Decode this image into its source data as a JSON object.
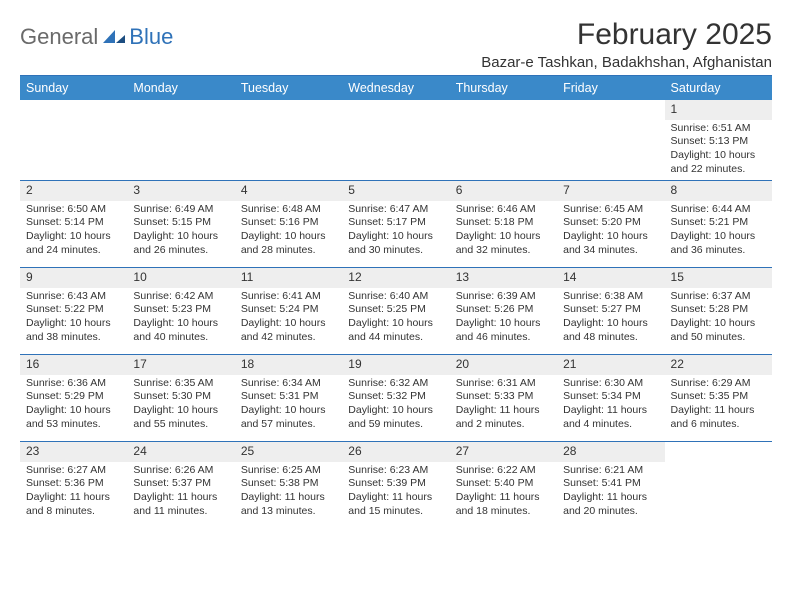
{
  "logo": {
    "general": "General",
    "blue": "Blue"
  },
  "title": "February 2025",
  "location": "Bazar-e Tashkan, Badakhshan, Afghanistan",
  "colors": {
    "header_bg": "#3a89c9",
    "rule": "#2f72b8",
    "daynum_bg": "#eeeeee",
    "text": "#333333",
    "logo_gray": "#6a6a6a",
    "logo_blue": "#2f72b8"
  },
  "weekdays": [
    "Sunday",
    "Monday",
    "Tuesday",
    "Wednesday",
    "Thursday",
    "Friday",
    "Saturday"
  ],
  "weeks": [
    [
      null,
      null,
      null,
      null,
      null,
      null,
      {
        "n": "1",
        "sr": "Sunrise: 6:51 AM",
        "ss": "Sunset: 5:13 PM",
        "dl": "Daylight: 10 hours and 22 minutes."
      }
    ],
    [
      {
        "n": "2",
        "sr": "Sunrise: 6:50 AM",
        "ss": "Sunset: 5:14 PM",
        "dl": "Daylight: 10 hours and 24 minutes."
      },
      {
        "n": "3",
        "sr": "Sunrise: 6:49 AM",
        "ss": "Sunset: 5:15 PM",
        "dl": "Daylight: 10 hours and 26 minutes."
      },
      {
        "n": "4",
        "sr": "Sunrise: 6:48 AM",
        "ss": "Sunset: 5:16 PM",
        "dl": "Daylight: 10 hours and 28 minutes."
      },
      {
        "n": "5",
        "sr": "Sunrise: 6:47 AM",
        "ss": "Sunset: 5:17 PM",
        "dl": "Daylight: 10 hours and 30 minutes."
      },
      {
        "n": "6",
        "sr": "Sunrise: 6:46 AM",
        "ss": "Sunset: 5:18 PM",
        "dl": "Daylight: 10 hours and 32 minutes."
      },
      {
        "n": "7",
        "sr": "Sunrise: 6:45 AM",
        "ss": "Sunset: 5:20 PM",
        "dl": "Daylight: 10 hours and 34 minutes."
      },
      {
        "n": "8",
        "sr": "Sunrise: 6:44 AM",
        "ss": "Sunset: 5:21 PM",
        "dl": "Daylight: 10 hours and 36 minutes."
      }
    ],
    [
      {
        "n": "9",
        "sr": "Sunrise: 6:43 AM",
        "ss": "Sunset: 5:22 PM",
        "dl": "Daylight: 10 hours and 38 minutes."
      },
      {
        "n": "10",
        "sr": "Sunrise: 6:42 AM",
        "ss": "Sunset: 5:23 PM",
        "dl": "Daylight: 10 hours and 40 minutes."
      },
      {
        "n": "11",
        "sr": "Sunrise: 6:41 AM",
        "ss": "Sunset: 5:24 PM",
        "dl": "Daylight: 10 hours and 42 minutes."
      },
      {
        "n": "12",
        "sr": "Sunrise: 6:40 AM",
        "ss": "Sunset: 5:25 PM",
        "dl": "Daylight: 10 hours and 44 minutes."
      },
      {
        "n": "13",
        "sr": "Sunrise: 6:39 AM",
        "ss": "Sunset: 5:26 PM",
        "dl": "Daylight: 10 hours and 46 minutes."
      },
      {
        "n": "14",
        "sr": "Sunrise: 6:38 AM",
        "ss": "Sunset: 5:27 PM",
        "dl": "Daylight: 10 hours and 48 minutes."
      },
      {
        "n": "15",
        "sr": "Sunrise: 6:37 AM",
        "ss": "Sunset: 5:28 PM",
        "dl": "Daylight: 10 hours and 50 minutes."
      }
    ],
    [
      {
        "n": "16",
        "sr": "Sunrise: 6:36 AM",
        "ss": "Sunset: 5:29 PM",
        "dl": "Daylight: 10 hours and 53 minutes."
      },
      {
        "n": "17",
        "sr": "Sunrise: 6:35 AM",
        "ss": "Sunset: 5:30 PM",
        "dl": "Daylight: 10 hours and 55 minutes."
      },
      {
        "n": "18",
        "sr": "Sunrise: 6:34 AM",
        "ss": "Sunset: 5:31 PM",
        "dl": "Daylight: 10 hours and 57 minutes."
      },
      {
        "n": "19",
        "sr": "Sunrise: 6:32 AM",
        "ss": "Sunset: 5:32 PM",
        "dl": "Daylight: 10 hours and 59 minutes."
      },
      {
        "n": "20",
        "sr": "Sunrise: 6:31 AM",
        "ss": "Sunset: 5:33 PM",
        "dl": "Daylight: 11 hours and 2 minutes."
      },
      {
        "n": "21",
        "sr": "Sunrise: 6:30 AM",
        "ss": "Sunset: 5:34 PM",
        "dl": "Daylight: 11 hours and 4 minutes."
      },
      {
        "n": "22",
        "sr": "Sunrise: 6:29 AM",
        "ss": "Sunset: 5:35 PM",
        "dl": "Daylight: 11 hours and 6 minutes."
      }
    ],
    [
      {
        "n": "23",
        "sr": "Sunrise: 6:27 AM",
        "ss": "Sunset: 5:36 PM",
        "dl": "Daylight: 11 hours and 8 minutes."
      },
      {
        "n": "24",
        "sr": "Sunrise: 6:26 AM",
        "ss": "Sunset: 5:37 PM",
        "dl": "Daylight: 11 hours and 11 minutes."
      },
      {
        "n": "25",
        "sr": "Sunrise: 6:25 AM",
        "ss": "Sunset: 5:38 PM",
        "dl": "Daylight: 11 hours and 13 minutes."
      },
      {
        "n": "26",
        "sr": "Sunrise: 6:23 AM",
        "ss": "Sunset: 5:39 PM",
        "dl": "Daylight: 11 hours and 15 minutes."
      },
      {
        "n": "27",
        "sr": "Sunrise: 6:22 AM",
        "ss": "Sunset: 5:40 PM",
        "dl": "Daylight: 11 hours and 18 minutes."
      },
      {
        "n": "28",
        "sr": "Sunrise: 6:21 AM",
        "ss": "Sunset: 5:41 PM",
        "dl": "Daylight: 11 hours and 20 minutes."
      },
      null
    ]
  ]
}
